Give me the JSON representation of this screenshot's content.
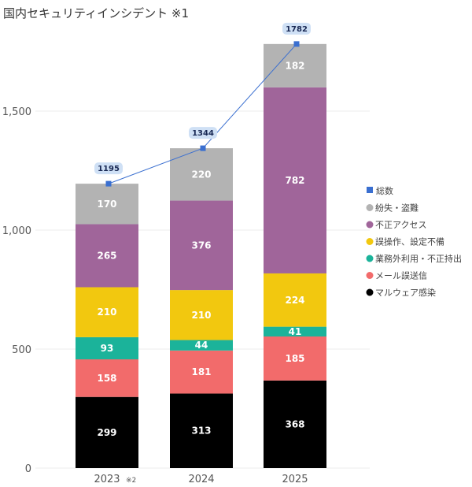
{
  "chart_data": {
    "type": "bar",
    "stacked": true,
    "title": "国内セキュリティインシデント ※1",
    "categories": [
      "2023",
      "2024",
      "2025"
    ],
    "category_notes": [
      "※2",
      "",
      ""
    ],
    "ylim": [
      0,
      1800
    ],
    "yticks": [
      0,
      500,
      1000,
      1500
    ],
    "ytick_labels": [
      "0",
      "500",
      "1,000",
      "1,500"
    ],
    "grid": true,
    "legend_position": "right",
    "series": [
      {
        "name": "マルウェア感染",
        "color": "#000000",
        "values": [
          299,
          313,
          368
        ]
      },
      {
        "name": "メール誤送信",
        "color": "#f26b6b",
        "values": [
          158,
          181,
          185
        ]
      },
      {
        "name": "業務外利用・不正持出",
        "color": "#1bb39a",
        "values": [
          93,
          44,
          41
        ]
      },
      {
        "name": "誤操作、設定不備",
        "color": "#f2c80f",
        "values": [
          210,
          210,
          224
        ]
      },
      {
        "name": "不正アクセス",
        "color": "#a0659a",
        "values": [
          265,
          376,
          782
        ]
      },
      {
        "name": "紛失・盗難",
        "color": "#b3b3b3",
        "values": [
          170,
          220,
          182
        ]
      }
    ],
    "total": {
      "name": "総数",
      "type": "line",
      "color": "#3a6fd0",
      "values": [
        1195,
        1344,
        1782
      ]
    }
  }
}
